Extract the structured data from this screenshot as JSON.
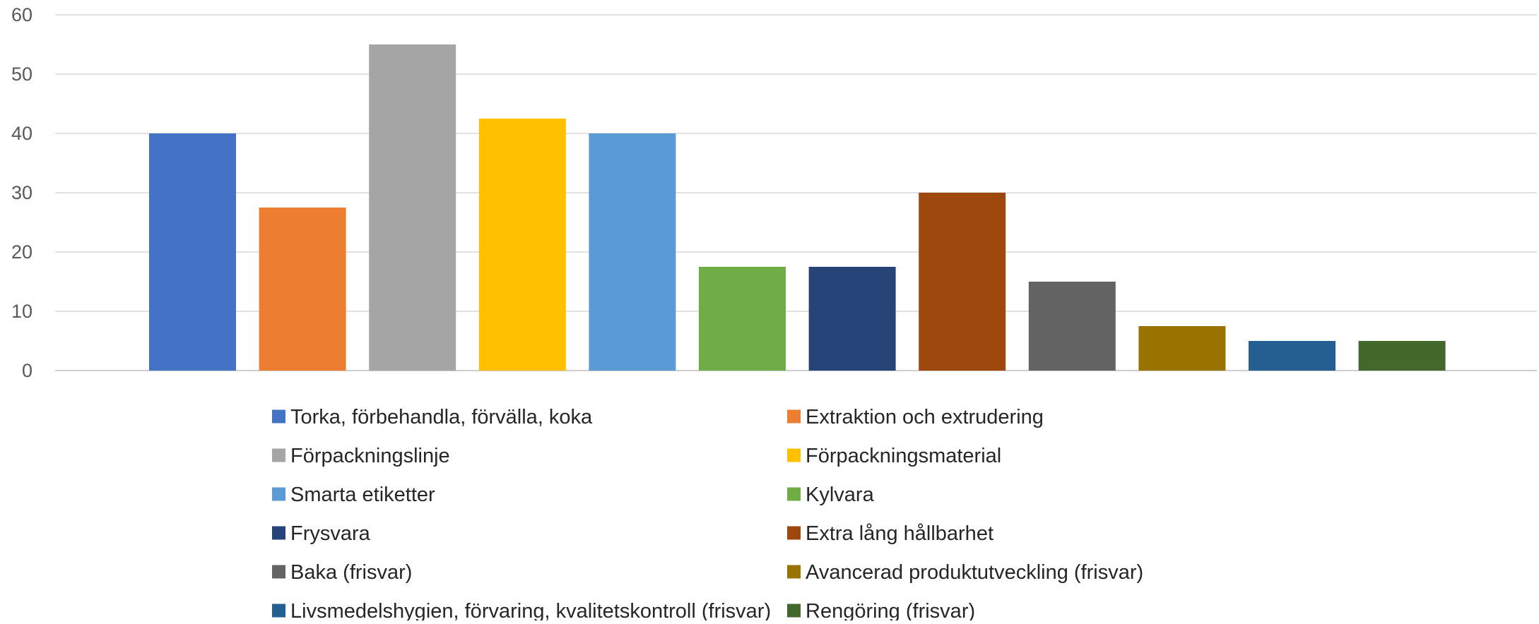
{
  "chart_data": {
    "type": "bar",
    "title": "",
    "xlabel": "",
    "ylabel": "",
    "ylim": [
      0,
      60
    ],
    "yticks": [
      0,
      10,
      20,
      30,
      40,
      50,
      60
    ],
    "grid": true,
    "legend_position": "bottom",
    "categories": [
      "Torka, förbehandla, förvälla, koka",
      "Extraktion och extrudering",
      "Förpackningslinje",
      "Förpackningsmaterial",
      "Smarta etiketter",
      "Kylvara",
      "Frysvara",
      "Extra lång hållbarhet",
      "Baka (frisvar)",
      "Avancerad produktutveckling (frisvar)",
      "Livsmedelshygien, förvaring, kvalitetskontroll (frisvar)",
      "Rengöring (frisvar)"
    ],
    "values": [
      40,
      27.5,
      55,
      42.5,
      40,
      17.5,
      17.5,
      30,
      15,
      7.5,
      5,
      5
    ],
    "colors": [
      "#4472C4",
      "#ED7D31",
      "#A5A5A5",
      "#FFC000",
      "#5B9BD5",
      "#70AD47",
      "#264478",
      "#9E480E",
      "#636363",
      "#997300",
      "#255E91",
      "#43682B"
    ]
  }
}
